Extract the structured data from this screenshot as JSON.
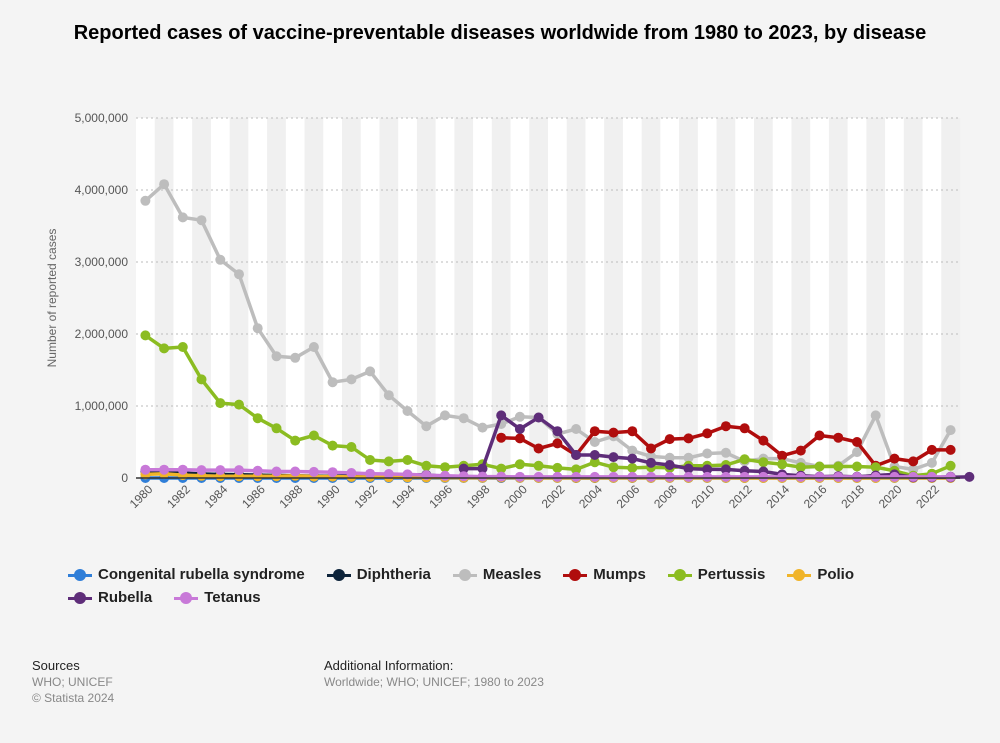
{
  "page": {
    "title": "Reported cases of vaccine-preventable diseases worldwide from 1980 to 2023, by disease",
    "sources_heading": "Sources",
    "sources_line1": "WHO; UNICEF",
    "sources_line2": "© Statista 2024",
    "additional_heading": "Additional Information:",
    "additional_text": "Worldwide; WHO; UNICEF; 1980 to 2023"
  },
  "chart_data": {
    "type": "line",
    "title": "Reported cases of vaccine-preventable diseases worldwide from 1980 to 2023, by disease",
    "xlabel": "",
    "ylabel": "Number of reported cases",
    "ylim": [
      0,
      5000000
    ],
    "yticks": [
      0,
      1000000,
      2000000,
      3000000,
      4000000,
      5000000
    ],
    "ytick_labels": [
      "0",
      "1,000,000",
      "2,000,000",
      "3,000,000",
      "4,000,000",
      "5,000,000"
    ],
    "x_start": 1980,
    "x_end": 2023,
    "xtick_labels": [
      "1980",
      "1982",
      "1984",
      "1986",
      "1988",
      "1990",
      "1992",
      "1994",
      "1996",
      "1998",
      "2000",
      "2002",
      "2004",
      "2006",
      "2008",
      "2010",
      "2012",
      "2014",
      "2016",
      "2018",
      "2020",
      "2022"
    ],
    "grid": true,
    "legend_position": "bottom",
    "series": [
      {
        "name": "Congenital rubella syndrome",
        "color": "#2f7ed8",
        "start": 1980,
        "values": [
          0,
          0,
          0,
          0,
          0,
          0,
          0,
          0,
          0,
          0,
          0,
          0,
          0,
          0,
          0,
          0,
          0,
          0,
          0,
          0,
          0,
          0,
          0,
          0,
          0,
          0,
          0,
          0,
          0,
          0,
          0,
          0,
          0,
          0,
          0,
          0,
          0,
          0,
          0,
          0,
          0,
          0,
          0,
          0
        ]
      },
      {
        "name": "Diphtheria",
        "color": "#0d233a",
        "start": 1980,
        "values": [
          97000,
          86000,
          70000,
          55000,
          50000,
          45000,
          40000,
          35000,
          30000,
          25000,
          24000,
          30000,
          47000,
          50000,
          45000,
          45000,
          20000,
          10000,
          8000,
          5000,
          12000,
          5000,
          9000,
          2000,
          2000,
          8000,
          4000,
          5000,
          7000,
          7000,
          5000,
          5000,
          4000,
          5000,
          7000,
          5000,
          7000,
          8000,
          16000,
          23000,
          10000,
          8000,
          5000,
          16000
        ]
      },
      {
        "name": "Measles",
        "color": "#bdbdbd",
        "start": 1980,
        "values": [
          3850000,
          4080000,
          3620000,
          3580000,
          3030000,
          2830000,
          2080000,
          1690000,
          1670000,
          1820000,
          1330000,
          1370000,
          1480000,
          1150000,
          930000,
          720000,
          870000,
          830000,
          700000,
          750000,
          850000,
          840000,
          610000,
          680000,
          500000,
          580000,
          380000,
          300000,
          280000,
          280000,
          340000,
          350000,
          230000,
          270000,
          270000,
          210000,
          160000,
          170000,
          360000,
          870000,
          160000,
          120000,
          210000,
          665000
        ]
      },
      {
        "name": "Mumps",
        "color": "#b00d0d",
        "start": 1999,
        "values": [
          560000,
          550000,
          410000,
          480000,
          320000,
          650000,
          630000,
          650000,
          410000,
          540000,
          550000,
          620000,
          720000,
          690000,
          520000,
          310000,
          380000,
          590000,
          560000,
          500000,
          170000,
          270000,
          230000,
          390000,
          390000
        ]
      },
      {
        "name": "Pertussis",
        "color": "#8bbc21",
        "start": 1980,
        "values": [
          1980000,
          1800000,
          1820000,
          1370000,
          1040000,
          1020000,
          830000,
          690000,
          520000,
          590000,
          450000,
          430000,
          250000,
          230000,
          250000,
          170000,
          150000,
          170000,
          190000,
          130000,
          190000,
          170000,
          140000,
          120000,
          220000,
          150000,
          140000,
          150000,
          140000,
          170000,
          170000,
          180000,
          260000,
          220000,
          190000,
          150000,
          160000,
          160000,
          160000,
          150000,
          100000,
          30000,
          60000,
          170000
        ]
      },
      {
        "name": "Polio",
        "color": "#f0b429",
        "start": 1980,
        "values": [
          50000,
          60000,
          40000,
          30000,
          25000,
          25000,
          25000,
          25000,
          30000,
          20000,
          20000,
          15000,
          15000,
          10000,
          8000,
          7000,
          5000,
          4000,
          3500,
          7000,
          3000,
          2000,
          2000,
          800,
          1300,
          2000,
          2000,
          1300,
          1600,
          1600,
          1300,
          700,
          300,
          400,
          400,
          100,
          50,
          30,
          30,
          200,
          1100,
          20,
          40,
          50
        ]
      },
      {
        "name": "Rubella",
        "color": "#5e2d79",
        "start": 1997,
        "values": [
          130000,
          130000,
          870000,
          680000,
          840000,
          650000,
          320000,
          320000,
          290000,
          270000,
          210000,
          180000,
          130000,
          120000,
          120000,
          100000,
          90000,
          50000,
          30000,
          20000,
          25000,
          15000,
          35000,
          50000,
          10000,
          10000,
          10000,
          15000
        ]
      },
      {
        "name": "Tetanus",
        "color": "#c879d8",
        "start": 1980,
        "values": [
          115000,
          115000,
          115000,
          110000,
          110000,
          110000,
          100000,
          90000,
          90000,
          85000,
          80000,
          70000,
          60000,
          55000,
          50000,
          40000,
          30000,
          25000,
          20000,
          20000,
          15000,
          15000,
          15000,
          15000,
          15000,
          15000,
          15000,
          15000,
          15000,
          15000,
          15000,
          15000,
          15000,
          15000,
          15000,
          15000,
          15000,
          15000,
          15000,
          15000,
          15000,
          15000,
          15000,
          15000
        ]
      }
    ]
  }
}
